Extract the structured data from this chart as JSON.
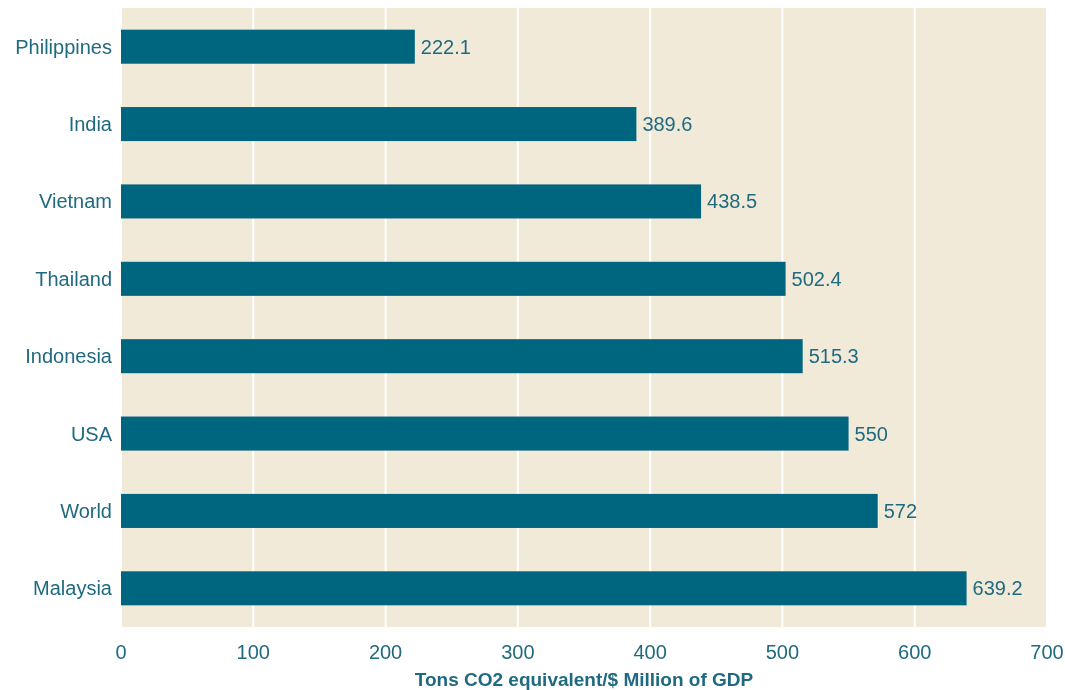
{
  "chart_data": {
    "type": "bar",
    "orientation": "horizontal",
    "xlabel": "Tons CO2 equivalent/$ Million of GDP",
    "categories": [
      "Philippines",
      "India",
      "Vietnam",
      "Thailand",
      "Indonesia",
      "USA",
      "World",
      "Malaysia"
    ],
    "values": [
      222.1,
      389.6,
      438.5,
      502.4,
      515.3,
      550,
      572,
      639.2
    ],
    "color": "#00657f",
    "xlim": [
      0,
      700
    ],
    "xticks": [
      0,
      100,
      200,
      300,
      400,
      500,
      600,
      700
    ],
    "grid": "x",
    "data_labels": true
  }
}
